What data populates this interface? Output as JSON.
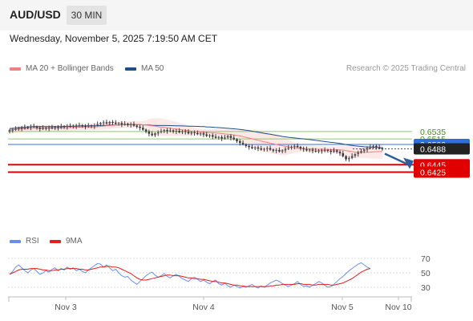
{
  "header": {
    "symbol": "AUD/USD",
    "timeframe": "30 MIN",
    "datetime": "Wednesday, November 5, 2025 7:19:50 AM CET",
    "copyright": "Research © 2025 Trading Central"
  },
  "legend": {
    "ma20": "MA 20 + Bollinger Bands",
    "ma50": "MA 50",
    "rsi": "RSI",
    "ma9": "9MA"
  },
  "colors": {
    "ma20": "#f08080",
    "band_fill": "#fde4e4",
    "ma50": "#1f4e8c",
    "candle": "#3a3a3a",
    "resistance": "#8fc86b",
    "resistance_text": "#4a8a1f",
    "pivot": "#2f6fdd",
    "support": "#e00000",
    "current": "#222222",
    "arrow": "#2f5f9a",
    "rsi": "#6a8fe6",
    "rsi_ma": "#e02020",
    "grid": "#d8d8d8",
    "axis_text": "#555555"
  },
  "chart_data": [
    {
      "type": "candlestick",
      "instrument": "AUD/USD",
      "timeframe": "30 MIN",
      "xlabels": [
        "Nov 3",
        "Nov 4",
        "Nov 5",
        "Nov 10"
      ],
      "levels": [
        {
          "value": 0.6535,
          "kind": "resistance",
          "label": "0.6535"
        },
        {
          "value": 0.6515,
          "kind": "resistance",
          "label": "0.6515"
        },
        {
          "value": 0.65,
          "kind": "pivot",
          "label": "0.6500"
        },
        {
          "value": 0.6488,
          "kind": "current",
          "label": "0.6488"
        },
        {
          "value": 0.6445,
          "kind": "support",
          "label": "0.6445"
        },
        {
          "value": 0.6425,
          "kind": "support",
          "label": "0.6425"
        }
      ],
      "projection": {
        "from": 0.6488,
        "to": 0.6425
      },
      "series": {
        "close": [
          0.6539,
          0.654,
          0.6542,
          0.6545,
          0.6543,
          0.6547,
          0.6546,
          0.6549,
          0.6548,
          0.6545,
          0.6542,
          0.6545,
          0.6543,
          0.6546,
          0.6544,
          0.6547,
          0.6545,
          0.6549,
          0.6547,
          0.655,
          0.6548,
          0.6551,
          0.6549,
          0.6552,
          0.655,
          0.6548,
          0.6551,
          0.6549,
          0.6552,
          0.6555,
          0.6558,
          0.656,
          0.6557,
          0.6561,
          0.6559,
          0.6556,
          0.6558,
          0.6554,
          0.6556,
          0.6553,
          0.6555,
          0.6551,
          0.6548,
          0.6545,
          0.654,
          0.6535,
          0.6529,
          0.6525,
          0.653,
          0.6533,
          0.6536,
          0.6539,
          0.6536,
          0.6538,
          0.6535,
          0.6537,
          0.6533,
          0.6536,
          0.6534,
          0.653,
          0.6533,
          0.6531,
          0.6528,
          0.653,
          0.6527,
          0.6523,
          0.6525,
          0.6521,
          0.6518,
          0.652,
          0.6516,
          0.6519,
          0.6523,
          0.6518,
          0.6514,
          0.6509,
          0.6504,
          0.65,
          0.6496,
          0.6493,
          0.649,
          0.6492,
          0.6489,
          0.6486,
          0.6488,
          0.649,
          0.6486,
          0.6483,
          0.6485,
          0.6481,
          0.6484,
          0.6488,
          0.6491,
          0.6494,
          0.6496,
          0.6493,
          0.6489,
          0.6487,
          0.6484,
          0.6486,
          0.6483,
          0.6481,
          0.6484,
          0.6482,
          0.6485,
          0.6483,
          0.648,
          0.6484,
          0.648,
          0.6476,
          0.6468,
          0.646,
          0.6463,
          0.6469,
          0.6474,
          0.6478,
          0.6482,
          0.6486,
          0.649,
          0.6494,
          0.6496,
          0.6493,
          0.649,
          0.6488
        ],
        "rsi": [
          48,
          52,
          58,
          61,
          57,
          53,
          50,
          54,
          56,
          52,
          48,
          50,
          53,
          51,
          55,
          57,
          53,
          56,
          54,
          58,
          55,
          57,
          53,
          55,
          52,
          50,
          54,
          57,
          60,
          63,
          62,
          58,
          61,
          57,
          53,
          55,
          50,
          46,
          44,
          45,
          40,
          37,
          34,
          38,
          42,
          46,
          49,
          51,
          47,
          44,
          46,
          49,
          45,
          43,
          46,
          48,
          45,
          42,
          40,
          38,
          42,
          44,
          41,
          38,
          40,
          37,
          35,
          38,
          40,
          35,
          33,
          36,
          32,
          30,
          33,
          31,
          29,
          31,
          30,
          32,
          34,
          31,
          29,
          32,
          30,
          33,
          36,
          38,
          40,
          38,
          35,
          33,
          31,
          33,
          35,
          38,
          34,
          31,
          32,
          30,
          33,
          35,
          38,
          36,
          33,
          30,
          31,
          34,
          38,
          42,
          45,
          49,
          53,
          56,
          59,
          62,
          64,
          61,
          58,
          56
        ],
        "rsi_ma": [
          48,
          50,
          52,
          54,
          55,
          55,
          55,
          56,
          56,
          56,
          55,
          54,
          54,
          53,
          53,
          54,
          54,
          55,
          55,
          56,
          56,
          56,
          56,
          55,
          55,
          54,
          54,
          55,
          56,
          57,
          58,
          58,
          59,
          59,
          58,
          58,
          57,
          55,
          53,
          51,
          49,
          46,
          43,
          41,
          40,
          40,
          41,
          42,
          43,
          44,
          45,
          46,
          47,
          47,
          46,
          46,
          46,
          45,
          44,
          43,
          43,
          42,
          42,
          41,
          41,
          40,
          39,
          38,
          38,
          37,
          36,
          36,
          35,
          34,
          33,
          33,
          32,
          32,
          31,
          31,
          31,
          31,
          31,
          31,
          31,
          31,
          32,
          32,
          33,
          33,
          34,
          34,
          34,
          34,
          34,
          35,
          35,
          34,
          34,
          34,
          33,
          33,
          34,
          34,
          34,
          34,
          33,
          33,
          34,
          35,
          36,
          38,
          40,
          42,
          45,
          48,
          51,
          53,
          55,
          56
        ],
        "rsi_levels": [
          30,
          50,
          70
        ]
      }
    }
  ]
}
